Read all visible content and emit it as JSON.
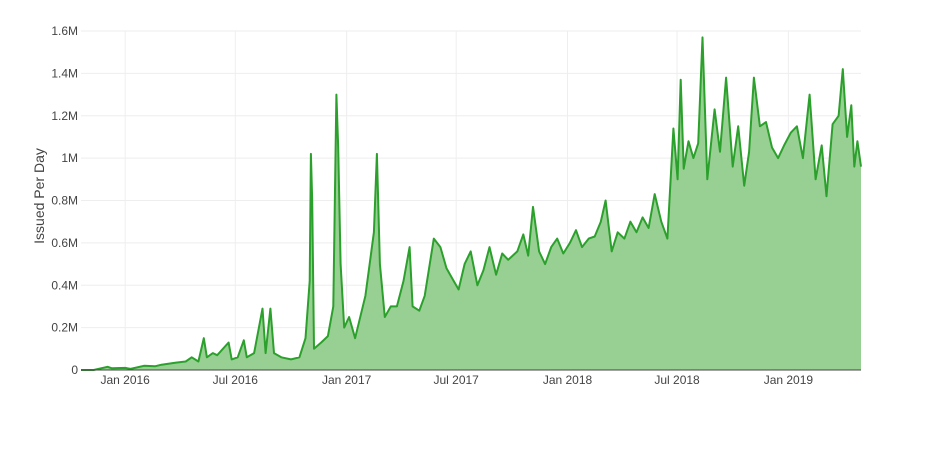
{
  "chart_data": {
    "type": "area",
    "title": "",
    "xlabel": "",
    "ylabel": "Issued Per Day",
    "ylim": [
      0,
      1600000
    ],
    "xlim": [
      "2015-10-20",
      "2019-05-01"
    ],
    "grid": true,
    "legend": "none",
    "colors": {
      "line": "#2ca02c",
      "fill": "#98d093",
      "grid": "#eeeeee",
      "zeroline": "#444444"
    },
    "y_ticks": [
      {
        "value": 0,
        "label": "0"
      },
      {
        "value": 200000,
        "label": "0.2M"
      },
      {
        "value": 400000,
        "label": "0.4M"
      },
      {
        "value": 600000,
        "label": "0.6M"
      },
      {
        "value": 800000,
        "label": "0.8M"
      },
      {
        "value": 1000000,
        "label": "1M"
      },
      {
        "value": 1200000,
        "label": "1.2M"
      },
      {
        "value": 1400000,
        "label": "1.4M"
      },
      {
        "value": 1600000,
        "label": "1.6M"
      }
    ],
    "x_ticks": [
      {
        "value": "2016-01-01",
        "label": "Jan 2016"
      },
      {
        "value": "2016-07-01",
        "label": "Jul 2016"
      },
      {
        "value": "2017-01-01",
        "label": "Jan 2017"
      },
      {
        "value": "2017-07-01",
        "label": "Jul 2017"
      },
      {
        "value": "2018-01-01",
        "label": "Jan 2018"
      },
      {
        "value": "2018-07-01",
        "label": "Jul 2018"
      },
      {
        "value": "2019-01-01",
        "label": "Jan 2019"
      }
    ],
    "series": [
      {
        "values": [
          [
            "2015-10-20",
            0
          ],
          [
            "2015-11-10",
            0
          ],
          [
            "2015-12-03",
            15000
          ],
          [
            "2015-12-10",
            8000
          ],
          [
            "2016-01-01",
            10000
          ],
          [
            "2016-01-10",
            5000
          ],
          [
            "2016-02-01",
            20000
          ],
          [
            "2016-02-20",
            18000
          ],
          [
            "2016-03-01",
            25000
          ],
          [
            "2016-03-25",
            35000
          ],
          [
            "2016-04-10",
            40000
          ],
          [
            "2016-04-20",
            60000
          ],
          [
            "2016-05-01",
            40000
          ],
          [
            "2016-05-10",
            150000
          ],
          [
            "2016-05-15",
            60000
          ],
          [
            "2016-05-25",
            80000
          ],
          [
            "2016-06-01",
            70000
          ],
          [
            "2016-06-20",
            130000
          ],
          [
            "2016-06-25",
            50000
          ],
          [
            "2016-07-05",
            60000
          ],
          [
            "2016-07-15",
            140000
          ],
          [
            "2016-07-20",
            60000
          ],
          [
            "2016-08-01",
            80000
          ],
          [
            "2016-08-15",
            290000
          ],
          [
            "2016-08-20",
            80000
          ],
          [
            "2016-08-28",
            290000
          ],
          [
            "2016-09-03",
            80000
          ],
          [
            "2016-09-15",
            60000
          ],
          [
            "2016-10-01",
            50000
          ],
          [
            "2016-10-15",
            60000
          ],
          [
            "2016-10-25",
            150000
          ],
          [
            "2016-11-01",
            420000
          ],
          [
            "2016-11-03",
            1020000
          ],
          [
            "2016-11-05",
            800000
          ],
          [
            "2016-11-08",
            100000
          ],
          [
            "2016-11-20",
            130000
          ],
          [
            "2016-12-01",
            160000
          ],
          [
            "2016-12-10",
            300000
          ],
          [
            "2016-12-15",
            1300000
          ],
          [
            "2016-12-18",
            1050000
          ],
          [
            "2016-12-22",
            500000
          ],
          [
            "2016-12-28",
            200000
          ],
          [
            "2017-01-05",
            250000
          ],
          [
            "2017-01-15",
            150000
          ],
          [
            "2017-02-01",
            350000
          ],
          [
            "2017-02-15",
            650000
          ],
          [
            "2017-02-20",
            1020000
          ],
          [
            "2017-02-25",
            500000
          ],
          [
            "2017-03-05",
            250000
          ],
          [
            "2017-03-15",
            300000
          ],
          [
            "2017-03-25",
            300000
          ],
          [
            "2017-04-05",
            420000
          ],
          [
            "2017-04-15",
            580000
          ],
          [
            "2017-04-20",
            300000
          ],
          [
            "2017-05-01",
            280000
          ],
          [
            "2017-05-10",
            350000
          ],
          [
            "2017-05-25",
            620000
          ],
          [
            "2017-06-05",
            580000
          ],
          [
            "2017-06-15",
            480000
          ],
          [
            "2017-06-25",
            430000
          ],
          [
            "2017-07-05",
            380000
          ],
          [
            "2017-07-15",
            500000
          ],
          [
            "2017-07-25",
            560000
          ],
          [
            "2017-08-05",
            400000
          ],
          [
            "2017-08-15",
            470000
          ],
          [
            "2017-08-25",
            580000
          ],
          [
            "2017-09-05",
            450000
          ],
          [
            "2017-09-15",
            550000
          ],
          [
            "2017-09-25",
            520000
          ],
          [
            "2017-10-10",
            560000
          ],
          [
            "2017-10-20",
            640000
          ],
          [
            "2017-10-28",
            540000
          ],
          [
            "2017-11-05",
            770000
          ],
          [
            "2017-11-15",
            560000
          ],
          [
            "2017-11-25",
            500000
          ],
          [
            "2017-12-05",
            580000
          ],
          [
            "2017-12-15",
            620000
          ],
          [
            "2017-12-25",
            550000
          ],
          [
            "2018-01-05",
            600000
          ],
          [
            "2018-01-15",
            660000
          ],
          [
            "2018-01-25",
            580000
          ],
          [
            "2018-02-05",
            620000
          ],
          [
            "2018-02-15",
            630000
          ],
          [
            "2018-02-25",
            700000
          ],
          [
            "2018-03-05",
            800000
          ],
          [
            "2018-03-15",
            560000
          ],
          [
            "2018-03-25",
            650000
          ],
          [
            "2018-04-05",
            620000
          ],
          [
            "2018-04-15",
            700000
          ],
          [
            "2018-04-25",
            650000
          ],
          [
            "2018-05-05",
            720000
          ],
          [
            "2018-05-15",
            670000
          ],
          [
            "2018-05-25",
            830000
          ],
          [
            "2018-06-05",
            700000
          ],
          [
            "2018-06-15",
            620000
          ],
          [
            "2018-06-25",
            1140000
          ],
          [
            "2018-07-02",
            900000
          ],
          [
            "2018-07-07",
            1370000
          ],
          [
            "2018-07-12",
            950000
          ],
          [
            "2018-07-20",
            1080000
          ],
          [
            "2018-07-28",
            1000000
          ],
          [
            "2018-08-05",
            1070000
          ],
          [
            "2018-08-12",
            1570000
          ],
          [
            "2018-08-20",
            900000
          ],
          [
            "2018-09-01",
            1230000
          ],
          [
            "2018-09-10",
            1030000
          ],
          [
            "2018-09-20",
            1380000
          ],
          [
            "2018-10-01",
            960000
          ],
          [
            "2018-10-10",
            1150000
          ],
          [
            "2018-10-20",
            870000
          ],
          [
            "2018-10-28",
            1030000
          ],
          [
            "2018-11-05",
            1380000
          ],
          [
            "2018-11-15",
            1150000
          ],
          [
            "2018-11-25",
            1170000
          ],
          [
            "2018-12-05",
            1050000
          ],
          [
            "2018-12-15",
            1000000
          ],
          [
            "2018-12-25",
            1060000
          ],
          [
            "2019-01-05",
            1120000
          ],
          [
            "2019-01-15",
            1150000
          ],
          [
            "2019-01-25",
            1000000
          ],
          [
            "2019-02-05",
            1300000
          ],
          [
            "2019-02-15",
            900000
          ],
          [
            "2019-02-25",
            1060000
          ],
          [
            "2019-03-05",
            820000
          ],
          [
            "2019-03-15",
            1160000
          ],
          [
            "2019-03-25",
            1200000
          ],
          [
            "2019-04-01",
            1420000
          ],
          [
            "2019-04-08",
            1100000
          ],
          [
            "2019-04-15",
            1250000
          ],
          [
            "2019-04-20",
            960000
          ],
          [
            "2019-04-25",
            1080000
          ],
          [
            "2019-05-01",
            960000
          ]
        ]
      }
    ]
  }
}
